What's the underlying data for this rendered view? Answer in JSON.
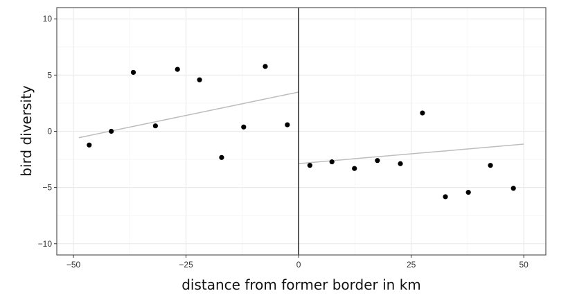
{
  "chart_data": {
    "type": "scatter",
    "title": "",
    "xlabel": "distance from former border in km",
    "ylabel": "bird diversity",
    "xlim": [
      -53.7,
      54.9
    ],
    "ylim": [
      -11,
      11
    ],
    "xticks": [
      -50,
      -25,
      0,
      25,
      50
    ],
    "xtick_labels": [
      "−50",
      "−25",
      "0",
      "25",
      "50"
    ],
    "yticks": [
      -10,
      -5,
      0,
      5,
      10
    ],
    "ytick_labels": [
      "−10",
      "−5",
      "0",
      "5",
      "10"
    ],
    "grid": true,
    "cutoff_line_x": 0,
    "points": [
      {
        "x": -46.5,
        "y": -1.22
      },
      {
        "x": -41.6,
        "y": 0.0
      },
      {
        "x": -36.7,
        "y": 5.24
      },
      {
        "x": -31.8,
        "y": 0.48
      },
      {
        "x": -26.9,
        "y": 5.51
      },
      {
        "x": -22.0,
        "y": 4.58
      },
      {
        "x": -17.1,
        "y": -2.33
      },
      {
        "x": -12.2,
        "y": 0.38
      },
      {
        "x": -7.4,
        "y": 5.77
      },
      {
        "x": -2.5,
        "y": 0.58
      },
      {
        "x": 2.5,
        "y": -3.03
      },
      {
        "x": 7.4,
        "y": -2.72
      },
      {
        "x": 12.4,
        "y": -3.31
      },
      {
        "x": 17.5,
        "y": -2.6
      },
      {
        "x": 22.6,
        "y": -2.88
      },
      {
        "x": 27.5,
        "y": 1.63
      },
      {
        "x": 32.6,
        "y": -5.82
      },
      {
        "x": 37.7,
        "y": -5.43
      },
      {
        "x": 42.6,
        "y": -3.03
      },
      {
        "x": 47.7,
        "y": -5.07
      }
    ],
    "fit_lines": [
      {
        "x": [
          -48.8,
          0
        ],
        "y": [
          -0.57,
          3.49
        ]
      },
      {
        "x": [
          0,
          50
        ],
        "y": [
          -2.87,
          -1.14
        ]
      }
    ],
    "colors": {
      "points": "#000000",
      "fit": "#bdbdbd",
      "cutoff": "#000000",
      "grid": "#ebebeb",
      "border": "#333333"
    }
  }
}
